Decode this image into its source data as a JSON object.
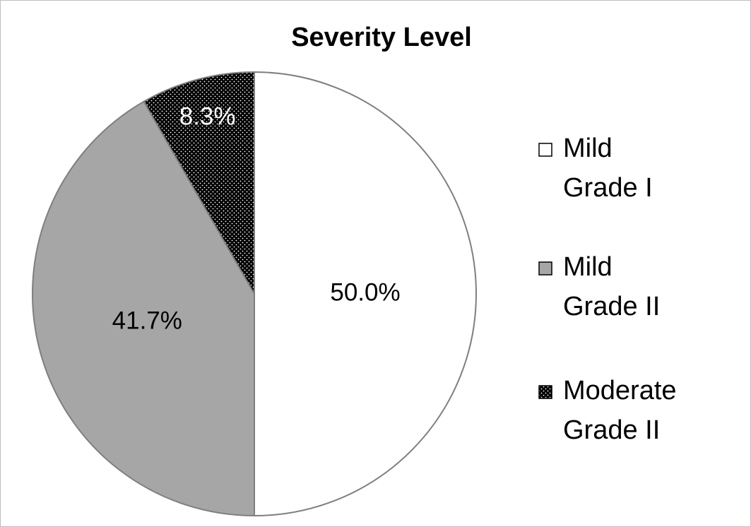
{
  "chart_data": {
    "type": "pie",
    "title": "Severity Level",
    "categories": [
      "Mild Grade I",
      "Mild Grade II",
      "Moderate Grade II"
    ],
    "values": [
      50.0,
      41.7,
      8.3
    ],
    "value_labels": [
      "50.0%",
      "41.7%",
      "8.3%"
    ],
    "colors": [
      "#ffffff",
      "#a6a6a6",
      "#000000"
    ],
    "patterns": [
      null,
      null,
      "dots"
    ],
    "legend": "right"
  }
}
